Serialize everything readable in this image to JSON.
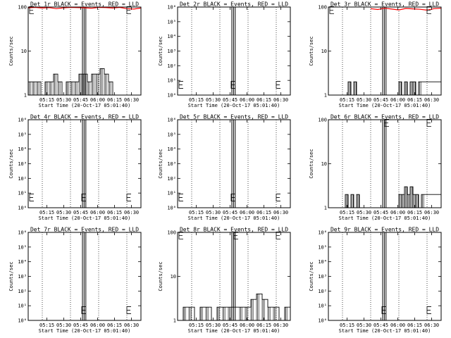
{
  "x_ticks": [
    "05:15",
    "05:30",
    "05:45",
    "06:00",
    "06:15",
    "06:30"
  ],
  "x_label": "Start Time (20-Oct-17 05:01:40)",
  "y_label": "Counts/sec",
  "colors": {
    "events": "#000000",
    "lld": "#ff0000",
    "frame": "#000000",
    "background": "#ffffff"
  },
  "chart_data": [
    {
      "type": "line",
      "title": "Det 1r BLACK = Events, RED = LLD",
      "xlim": [
        0,
        80
      ],
      "yscale": "log",
      "ylim": [
        1,
        100
      ],
      "ytick_values": [
        1,
        10,
        100
      ],
      "ytick_labels": [
        "1",
        "10",
        "100"
      ],
      "marker_x": [
        0,
        70
      ],
      "events": {
        "base": 1.0,
        "x": [
          0,
          3,
          6,
          9,
          12,
          15,
          18,
          21,
          24,
          27,
          30,
          33,
          36,
          39,
          42,
          45,
          48,
          51,
          54,
          57,
          60,
          63,
          66,
          69,
          72,
          75,
          78
        ],
        "y": [
          2,
          2,
          2,
          1,
          2,
          2,
          3,
          2,
          1,
          2,
          2,
          2,
          3,
          3,
          2,
          3,
          3,
          4,
          3,
          2,
          1,
          1,
          1,
          1,
          1,
          1,
          1
        ]
      },
      "lld": {
        "x": [
          0,
          5,
          10,
          15,
          20,
          25,
          30,
          35,
          40,
          45,
          50,
          55,
          60,
          65,
          70,
          75,
          80
        ],
        "y": [
          96,
          98,
          95,
          97,
          92,
          96,
          98,
          97,
          96,
          94,
          98,
          97,
          95,
          98,
          92,
          90,
          95
        ]
      }
    },
    {
      "type": "line",
      "title": "Det 2r BLACK = Events, RED = LLD",
      "xlim": [
        0,
        80
      ],
      "yscale": "log",
      "ylim": [
        1,
        1000000
      ],
      "ytick_values": [
        1,
        10,
        100,
        1000,
        10000,
        100000,
        1000000
      ],
      "ytick_labels": [
        "10⁰",
        "10¹",
        "10²",
        "10³",
        "10⁴",
        "10⁵",
        "10⁶"
      ],
      "marker_x": [
        0,
        38,
        70
      ],
      "events": {
        "base": 0.001,
        "x": [],
        "y": []
      },
      "lld": {
        "x": [],
        "y": []
      }
    },
    {
      "type": "line",
      "title": "Det 3r BLACK = Events, RED = LLD",
      "xlim": [
        0,
        80
      ],
      "yscale": "log",
      "ylim": [
        1,
        100
      ],
      "ytick_values": [
        1,
        10,
        100
      ],
      "ytick_labels": [
        "1",
        "10",
        "100"
      ],
      "marker_x": [
        0,
        70
      ],
      "events": {
        "base": 1.0,
        "x": [
          0,
          12,
          14,
          16,
          18,
          20,
          48,
          50,
          52,
          54,
          56,
          58,
          60,
          62,
          64,
          80
        ],
        "y": [
          1,
          1,
          2,
          1,
          2,
          1,
          1,
          2,
          1,
          2,
          1,
          2,
          2,
          1,
          2,
          1
        ]
      },
      "lld": {
        "x": [
          30,
          35,
          40,
          45,
          50,
          55,
          60,
          65,
          70,
          75,
          80
        ],
        "y": [
          92,
          88,
          94,
          90,
          86,
          93,
          91,
          89,
          85,
          92,
          94
        ]
      }
    },
    {
      "type": "line",
      "title": "Det 4r BLACK = Events, RED = LLD",
      "xlim": [
        0,
        80
      ],
      "yscale": "log",
      "ylim": [
        1,
        1000000
      ],
      "ytick_values": [
        1,
        10,
        100,
        1000,
        10000,
        100000,
        1000000
      ],
      "ytick_labels": [
        "10⁰",
        "10¹",
        "10²",
        "10³",
        "10⁴",
        "10⁵",
        "10⁶"
      ],
      "marker_x": [
        0,
        38,
        70
      ],
      "events": {
        "base": 0.001,
        "x": [],
        "y": []
      },
      "lld": {
        "x": [],
        "y": []
      }
    },
    {
      "type": "line",
      "title": "Det 5r BLACK = Events, RED = LLD",
      "xlim": [
        0,
        80
      ],
      "yscale": "log",
      "ylim": [
        1,
        1000000
      ],
      "ytick_values": [
        1,
        10,
        100,
        1000,
        10000,
        100000,
        1000000
      ],
      "ytick_labels": [
        "10⁰",
        "10¹",
        "10²",
        "10³",
        "10⁴",
        "10⁵",
        "10⁶"
      ],
      "marker_x": [
        0,
        38,
        70
      ],
      "events": {
        "base": 0.001,
        "x": [],
        "y": []
      },
      "lld": {
        "x": [],
        "y": []
      }
    },
    {
      "type": "line",
      "title": "Det 6r BLACK = Events, RED = LLD",
      "xlim": [
        0,
        80
      ],
      "yscale": "log",
      "ylim": [
        1,
        100
      ],
      "ytick_values": [
        1,
        10,
        100
      ],
      "ytick_labels": [
        "1",
        "10",
        "100"
      ],
      "marker_x": [
        40,
        70
      ],
      "events": {
        "base": 1.0,
        "x": [
          0,
          10,
          12,
          14,
          16,
          18,
          20,
          22,
          48,
          50,
          52,
          54,
          56,
          58,
          60,
          62,
          64,
          66,
          80
        ],
        "y": [
          1,
          1,
          2,
          1,
          2,
          1,
          2,
          1,
          1,
          2,
          2,
          3,
          2,
          3,
          2,
          2,
          1,
          2,
          1
        ]
      },
      "lld": {
        "x": [],
        "y": []
      }
    },
    {
      "type": "line",
      "title": "Det 7r BLACK = Events, RED = LLD",
      "xlim": [
        0,
        80
      ],
      "yscale": "log",
      "ylim": [
        1,
        1000000
      ],
      "ytick_values": [
        1,
        10,
        100,
        1000,
        10000,
        100000,
        1000000
      ],
      "ytick_labels": [
        "10⁰",
        "10¹",
        "10²",
        "10³",
        "10⁴",
        "10⁵",
        "10⁶"
      ],
      "marker_x": [
        38,
        70
      ],
      "events": {
        "base": 0.001,
        "x": [],
        "y": []
      },
      "lld": {
        "x": [],
        "y": []
      }
    },
    {
      "type": "line",
      "title": "Det 8r BLACK = Events, RED = LLD",
      "xlim": [
        0,
        80
      ],
      "yscale": "log",
      "ylim": [
        1,
        100
      ],
      "ytick_values": [
        1,
        10,
        100
      ],
      "ytick_labels": [
        "1",
        "10",
        "100"
      ],
      "marker_x": [
        0,
        40,
        70
      ],
      "events": {
        "base": 1.0,
        "x": [
          0,
          4,
          8,
          12,
          16,
          20,
          24,
          28,
          32,
          36,
          44,
          48,
          52,
          56,
          60,
          64,
          68,
          72,
          76,
          80
        ],
        "y": [
          1,
          2,
          2,
          1,
          2,
          2,
          1,
          2,
          2,
          2,
          2,
          2,
          3,
          4,
          3,
          2,
          2,
          1,
          2,
          1
        ]
      },
      "lld": {
        "x": [],
        "y": []
      }
    },
    {
      "type": "line",
      "title": "Det 9r BLACK = Events, RED = LLD",
      "xlim": [
        0,
        80
      ],
      "yscale": "log",
      "ylim": [
        1,
        1000000
      ],
      "ytick_values": [
        1,
        10,
        100,
        1000,
        10000,
        100000,
        1000000
      ],
      "ytick_labels": [
        "10⁰",
        "10¹",
        "10²",
        "10³",
        "10⁴",
        "10⁵",
        "10⁶"
      ],
      "marker_x": [
        38,
        70
      ],
      "events": {
        "base": 0.001,
        "x": [],
        "y": []
      },
      "lld": {
        "x": [],
        "y": []
      }
    }
  ]
}
